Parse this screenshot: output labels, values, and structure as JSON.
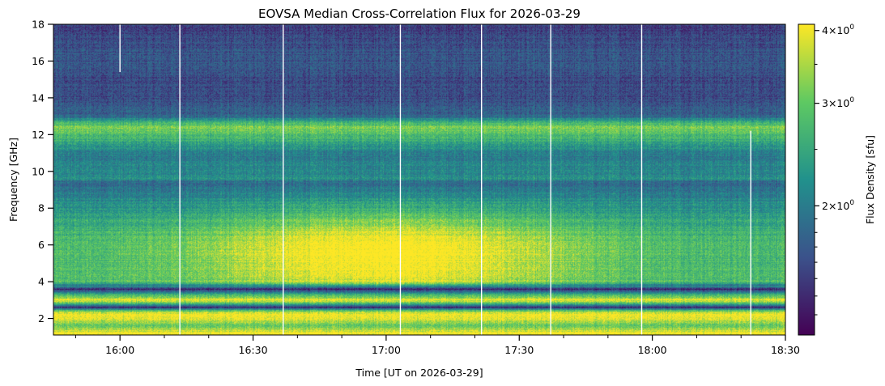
{
  "chart_data": {
    "type": "heatmap",
    "title": "EOVSA Median Cross-Correlation Flux for 2026-03-29",
    "xlabel": "Time [UT on 2026-03-29]",
    "ylabel": "Frequency [GHz]",
    "colorbar_label": "Flux Density [sfu]",
    "colormap": "viridis",
    "color_scale": "log",
    "color_range_sfu": [
      1.2,
      4.1
    ],
    "colormap_stops": [
      "#440154",
      "#3b528b",
      "#21918c",
      "#5ec962",
      "#fde725"
    ],
    "x_range_minutes_ut": [
      945,
      1110
    ],
    "x_major_ticks": [
      {
        "minutes": 960,
        "label": "16:00"
      },
      {
        "minutes": 990,
        "label": "16:30"
      },
      {
        "minutes": 1020,
        "label": "17:00"
      },
      {
        "minutes": 1050,
        "label": "17:30"
      },
      {
        "minutes": 1080,
        "label": "18:00"
      },
      {
        "minutes": 1110,
        "label": "18:30"
      }
    ],
    "x_minor_ticks_minutes": [
      950,
      970,
      980,
      1000,
      1010,
      1030,
      1040,
      1060,
      1070,
      1090,
      1100
    ],
    "y_range_ghz": [
      1.1,
      18.0
    ],
    "y_ticks": [
      {
        "value": 2,
        "label": "2"
      },
      {
        "value": 4,
        "label": "4"
      },
      {
        "value": 6,
        "label": "6"
      },
      {
        "value": 8,
        "label": "8"
      },
      {
        "value": 10,
        "label": "10"
      },
      {
        "value": 12,
        "label": "12"
      },
      {
        "value": 14,
        "label": "14"
      },
      {
        "value": 16,
        "label": "16"
      },
      {
        "value": 18,
        "label": "18"
      }
    ],
    "colorbar_ticks": [
      {
        "value": 2,
        "base": "2",
        "mult": "×10",
        "exp": "0"
      },
      {
        "value": 3,
        "base": "3",
        "mult": "×10",
        "exp": "0"
      },
      {
        "value": 4,
        "base": "4",
        "mult": "×10",
        "exp": "0"
      }
    ],
    "colorbar_minor_ticks": [
      1.3,
      1.4,
      1.5,
      1.6,
      1.7,
      1.8,
      1.9,
      2.5,
      3.5
    ],
    "data_gaps_minutes_ut": [
      973.5,
      996.8,
      1023.2,
      1041.5,
      1057.1,
      1077.6
    ],
    "short_gaps": [
      {
        "minutes": 960.0,
        "f_from": 15.4,
        "f_to": 18.0
      },
      {
        "minutes": 1102.2,
        "f_from": 1.1,
        "f_to": 12.2
      }
    ],
    "flux_profile_by_frequency": [
      {
        "f": 1.2,
        "sfu": 4.1
      },
      {
        "f": 1.6,
        "sfu": 3.0
      },
      {
        "f": 2.0,
        "sfu": 4.0
      },
      {
        "f": 2.3,
        "sfu": 4.0
      },
      {
        "f": 2.6,
        "sfu": 1.3
      },
      {
        "f": 3.0,
        "sfu": 4.0
      },
      {
        "f": 3.6,
        "sfu": 1.3
      },
      {
        "f": 4.0,
        "sfu": 3.5
      },
      {
        "f": 5.0,
        "sfu": 3.4
      },
      {
        "f": 6.0,
        "sfu": 3.5
      },
      {
        "f": 7.0,
        "sfu": 3.2
      },
      {
        "f": 8.0,
        "sfu": 2.8
      },
      {
        "f": 9.0,
        "sfu": 2.4
      },
      {
        "f": 10.0,
        "sfu": 2.1
      },
      {
        "f": 11.0,
        "sfu": 2.0
      },
      {
        "f": 12.4,
        "sfu": 3.2
      },
      {
        "f": 13.0,
        "sfu": 1.8
      },
      {
        "f": 14.0,
        "sfu": 1.6
      },
      {
        "f": 15.0,
        "sfu": 1.6
      },
      {
        "f": 16.0,
        "sfu": 1.7
      },
      {
        "f": 17.0,
        "sfu": 1.6
      },
      {
        "f": 18.0,
        "sfu": 1.5
      }
    ],
    "burst_peak_minutes_ut": 1020,
    "burst_peak_frequency_ghz": 5.5,
    "burst_peak_sfu": 4.1
  }
}
